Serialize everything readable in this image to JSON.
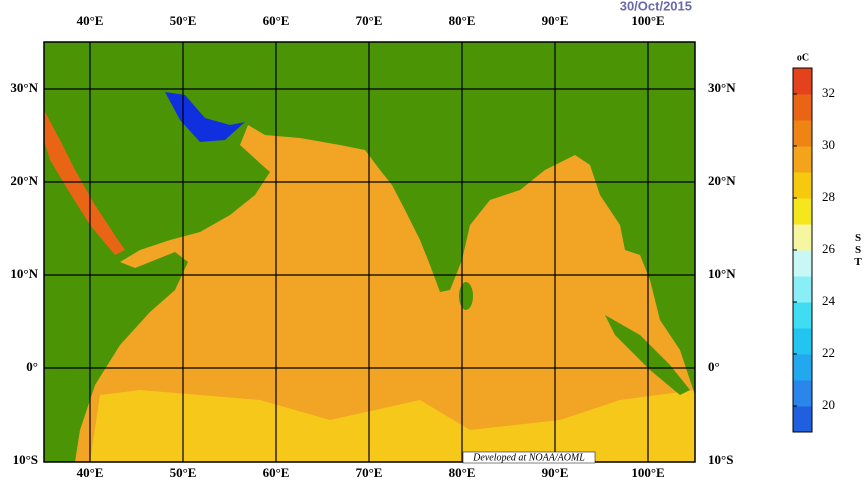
{
  "date": "30/Oct/2015",
  "map": {
    "lon_labels": [
      "40°E",
      "50°E",
      "60°E",
      "70°E",
      "80°E",
      "90°E",
      "100°E"
    ],
    "lat_labels": [
      "30°N",
      "20°N",
      "10°N",
      "0°",
      "10°S"
    ],
    "credit": "Developed at NOAA/AOML"
  },
  "colorbar": {
    "unit": "oC",
    "title": "SST",
    "ticks": [
      "32",
      "30",
      "28",
      "26",
      "24",
      "22",
      "20"
    ],
    "colors": [
      "#1f5fe0",
      "#2a86ea",
      "#22a8ee",
      "#22c4f0",
      "#40dcf2",
      "#8aeef6",
      "#c8f8f6",
      "#f6f6a0",
      "#f6e61c",
      "#f6c80e",
      "#f3a41a",
      "#ee8414",
      "#ea6416",
      "#e4421c"
    ]
  }
}
